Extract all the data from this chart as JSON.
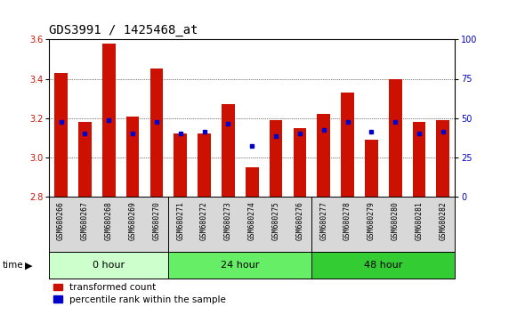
{
  "title": "GDS3991 / 1425468_at",
  "samples": [
    "GSM680266",
    "GSM680267",
    "GSM680268",
    "GSM680269",
    "GSM680270",
    "GSM680271",
    "GSM680272",
    "GSM680273",
    "GSM680274",
    "GSM680275",
    "GSM680276",
    "GSM680277",
    "GSM680278",
    "GSM680279",
    "GSM680280",
    "GSM680281",
    "GSM680282"
  ],
  "red_values": [
    3.43,
    3.18,
    3.58,
    3.21,
    3.45,
    3.12,
    3.12,
    3.27,
    2.95,
    3.19,
    3.15,
    3.22,
    3.33,
    3.09,
    3.4,
    3.18,
    3.19
  ],
  "blue_values": [
    3.18,
    3.12,
    3.19,
    3.12,
    3.18,
    3.12,
    3.13,
    3.17,
    3.06,
    3.11,
    3.12,
    3.14,
    3.18,
    3.13,
    3.18,
    3.12,
    3.13
  ],
  "groups": [
    {
      "label": "0 hour",
      "start": 0,
      "end": 5,
      "color": "#ccffcc"
    },
    {
      "label": "24 hour",
      "start": 5,
      "end": 11,
      "color": "#66ee66"
    },
    {
      "label": "48 hour",
      "start": 11,
      "end": 17,
      "color": "#33cc33"
    }
  ],
  "ylim": [
    2.8,
    3.6
  ],
  "yticks_left": [
    2.8,
    3.0,
    3.2,
    3.4,
    3.6
  ],
  "yticks_right": [
    0,
    25,
    50,
    75,
    100
  ],
  "bar_color": "#cc1100",
  "dot_color": "#0000cc",
  "baseline": 2.8,
  "bg_color": "#d8d8d8",
  "legend_red": "transformed count",
  "legend_blue": "percentile rank within the sample",
  "title_fontsize": 10,
  "tick_fontsize": 7,
  "sample_fontsize": 5.8,
  "group_fontsize": 8,
  "legend_fontsize": 7.5
}
